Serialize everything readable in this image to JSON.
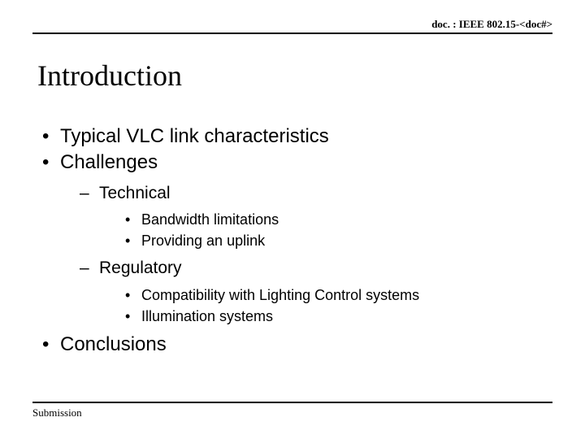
{
  "header": {
    "doc_ref": "doc. : IEEE 802.15-<doc#>"
  },
  "title": "Introduction",
  "bullets": {
    "item1": "Typical VLC link characteristics",
    "item2": "Challenges",
    "item2_sub1": "Technical",
    "item2_sub1_a": "Bandwidth limitations",
    "item2_sub1_b": "Providing an uplink",
    "item2_sub2": "Regulatory",
    "item2_sub2_a": "Compatibility with Lighting Control systems",
    "item2_sub2_b": "Illumination systems",
    "item3": "Conclusions"
  },
  "footer": {
    "label": "Submission"
  },
  "style": {
    "background_color": "#ffffff",
    "text_color": "#000000",
    "rule_color": "#000000",
    "title_font": "Times New Roman",
    "title_fontsize_pt": 28,
    "body_font": "Arial",
    "lvl1_fontsize_pt": 18,
    "lvl2_fontsize_pt": 16,
    "lvl3_fontsize_pt": 14,
    "header_footer_fontsize_pt": 10
  }
}
